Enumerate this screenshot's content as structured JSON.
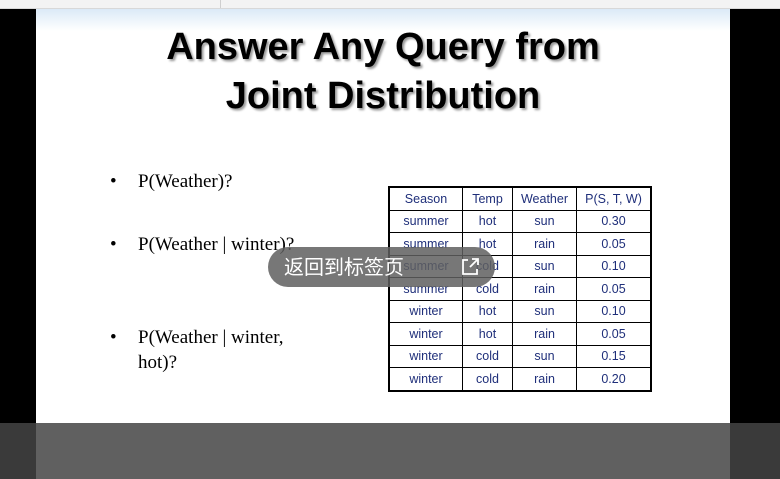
{
  "slide": {
    "title_line1": "Answer Any Query from",
    "title_line2": "Joint Distribution",
    "bullet_symbol": "•",
    "bullets": [
      {
        "line1": "P(Weather)?",
        "line2": ""
      },
      {
        "line1": "P(Weather | winter)?",
        "line2": ""
      },
      {
        "line1": "P(Weather | winter,",
        "line2": "hot)?"
      }
    ],
    "table": {
      "headers": [
        "Season",
        "Temp",
        "Weather",
        "P(S, T, W)"
      ],
      "rows": [
        [
          "summer",
          "hot",
          "sun",
          "0.30"
        ],
        [
          "summer",
          "hot",
          "rain",
          "0.05"
        ],
        [
          "summer",
          "cold",
          "sun",
          "0.10"
        ],
        [
          "summer",
          "cold",
          "rain",
          "0.05"
        ],
        [
          "winter",
          "hot",
          "sun",
          "0.10"
        ],
        [
          "winter",
          "hot",
          "rain",
          "0.05"
        ],
        [
          "winter",
          "cold",
          "sun",
          "0.15"
        ],
        [
          "winter",
          "cold",
          "rain",
          "0.20"
        ]
      ]
    }
  },
  "overlay": {
    "back_to_tab_label": "返回到标签页",
    "icon": "external-link-icon"
  },
  "colors": {
    "table_text": "#1f2f7a",
    "overlay_bg": "#5f5f5f"
  }
}
